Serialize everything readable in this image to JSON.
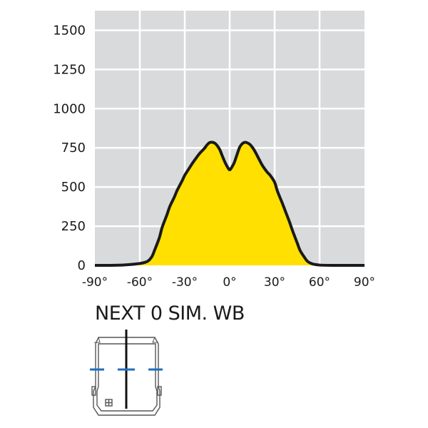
{
  "product": {
    "title": "NEXT 0 SIM. WB"
  },
  "colors": {
    "plot_bg": "#d9dadc",
    "grid": "#ffffff",
    "fill": "#ffe000",
    "curve": "#1a1a1a",
    "fixture_line": "#555555",
    "fixture_marker": "#1f6fbf"
  },
  "chart_data": {
    "type": "area",
    "title": "",
    "xlabel": "",
    "ylabel": "",
    "xlim": [
      -90,
      90
    ],
    "ylim": [
      0,
      1625
    ],
    "grid": true,
    "x_ticks": [
      -90,
      -60,
      -30,
      0,
      30,
      60,
      90
    ],
    "x_tick_labels": [
      "-90°",
      "-60°",
      "-30°",
      "0°",
      "30°",
      "60°",
      "90°"
    ],
    "y_ticks": [
      0,
      250,
      500,
      750,
      1000,
      1250,
      1500
    ],
    "y_tick_labels": [
      "0",
      "250",
      "500",
      "750",
      "1000",
      "1250",
      "1500"
    ],
    "series": [
      {
        "x": [
          -90,
          -80,
          -70,
          -60,
          -55,
          -52,
          -50,
          -47,
          -45,
          -42,
          -40,
          -37,
          -35,
          -32,
          -30,
          -27,
          -25,
          -22,
          -20,
          -17,
          -15,
          -13,
          -10,
          -7,
          -5,
          -3,
          -1,
          0,
          1,
          3,
          5,
          7,
          10,
          13,
          15,
          17,
          20,
          22,
          25,
          27,
          30,
          32,
          35,
          37,
          40,
          42,
          45,
          47,
          50,
          52,
          55,
          60,
          70,
          80,
          90
        ],
        "values": [
          0,
          0,
          3,
          12,
          25,
          55,
          100,
          175,
          245,
          320,
          375,
          435,
          480,
          535,
          575,
          620,
          650,
          690,
          715,
          745,
          770,
          785,
          780,
          745,
          700,
          655,
          620,
          610,
          620,
          655,
          710,
          760,
          785,
          775,
          755,
          725,
          670,
          635,
          595,
          575,
          530,
          470,
          400,
          350,
          275,
          220,
          145,
          95,
          50,
          25,
          10,
          2,
          0,
          0,
          0
        ]
      }
    ]
  }
}
